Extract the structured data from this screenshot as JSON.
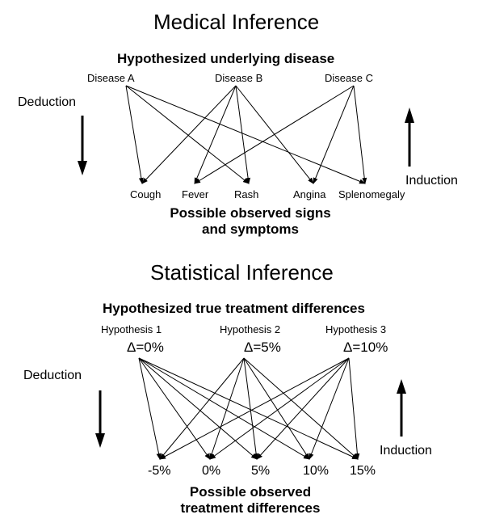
{
  "medical": {
    "title": "Medical Inference",
    "hypotheses_label": "Hypothesized underlying disease",
    "diseases": [
      "Disease A",
      "Disease B",
      "Disease C"
    ],
    "symptoms": [
      "Cough",
      "Fever",
      "Rash",
      "Angina",
      "Splenomegaly"
    ],
    "observed_label_line1": "Possible observed signs",
    "observed_label_line2": "and symptoms",
    "deduction": "Deduction",
    "induction": "Induction"
  },
  "statistical": {
    "title": "Statistical Inference",
    "hypotheses_label": "Hypothesized true treatment differences",
    "hypotheses": [
      "Hypothesis 1",
      "Hypothesis 2",
      "Hypothesis 3"
    ],
    "deltas": [
      "Δ=0%",
      "Δ=5%",
      "Δ=10%"
    ],
    "outcomes": [
      "-5%",
      "0%",
      "5%",
      "10%",
      "15%"
    ],
    "observed_label_line1": "Possible observed",
    "observed_label_line2": "treatment differences",
    "deduction": "Deduction",
    "induction": "Induction"
  }
}
